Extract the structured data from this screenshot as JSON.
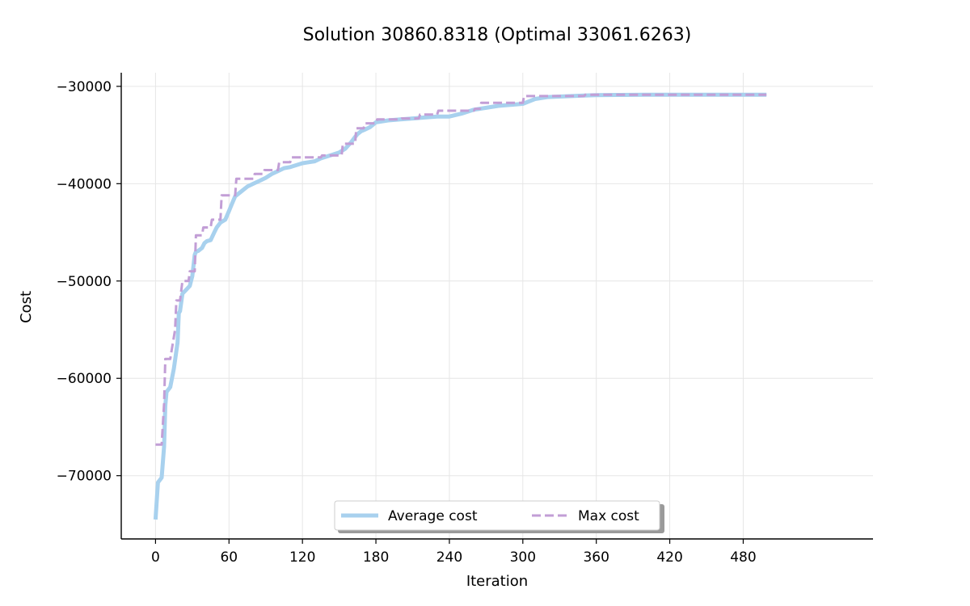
{
  "chart_data": {
    "type": "line",
    "title": "Solution 30860.8318 (Optimal 33061.6263)",
    "xlabel": "Iteration",
    "ylabel": "Cost",
    "xlim": [
      -28,
      586
    ],
    "ylim": [
      -76500,
      -28600
    ],
    "xticks": [
      0,
      60,
      120,
      180,
      240,
      300,
      360,
      420,
      480
    ],
    "yticks": [
      -70000,
      -60000,
      -50000,
      -40000,
      -30000
    ],
    "ytick_labels": [
      "−70000",
      "−60000",
      "−50000",
      "−40000",
      "−30000"
    ],
    "grid": true,
    "legend": {
      "position": "lower center",
      "ncol": 2
    },
    "series": [
      {
        "name": "Average cost",
        "style": "solid",
        "color": "#a8d1ee",
        "x": [
          0,
          2,
          5,
          7,
          8,
          9,
          12,
          15,
          18,
          19,
          20,
          22,
          25,
          28,
          30,
          32,
          33,
          35,
          38,
          40,
          42,
          45,
          48,
          50,
          53,
          57,
          60,
          62,
          65,
          70,
          75,
          80,
          85,
          90,
          95,
          100,
          105,
          110,
          115,
          120,
          125,
          130,
          135,
          140,
          145,
          150,
          155,
          160,
          163,
          165,
          168,
          170,
          175,
          180,
          190,
          200,
          210,
          220,
          230,
          240,
          250,
          260,
          270,
          280,
          290,
          300,
          310,
          320,
          330,
          340,
          350,
          360,
          380,
          400,
          420,
          450,
          499
        ],
        "values": [
          -74500,
          -70700,
          -70200,
          -67000,
          -62800,
          -61400,
          -60900,
          -59000,
          -56300,
          -53300,
          -53100,
          -51300,
          -50900,
          -50500,
          -49500,
          -47300,
          -47000,
          -46900,
          -46600,
          -46100,
          -45900,
          -45800,
          -45000,
          -44500,
          -44000,
          -43700,
          -42800,
          -42200,
          -41300,
          -40800,
          -40300,
          -40000,
          -39700,
          -39400,
          -39000,
          -38700,
          -38400,
          -38300,
          -38100,
          -37900,
          -37800,
          -37700,
          -37400,
          -37200,
          -37000,
          -36800,
          -36400,
          -35700,
          -35200,
          -34900,
          -34600,
          -34500,
          -34200,
          -33700,
          -33500,
          -33400,
          -33300,
          -33200,
          -33100,
          -33100,
          -32800,
          -32400,
          -32200,
          -32000,
          -31900,
          -31800,
          -31300,
          -31100,
          -31050,
          -31000,
          -30950,
          -30900,
          -30880,
          -30870,
          -30865,
          -30862,
          -30861
        ]
      },
      {
        "name": "Max cost",
        "style": "dashed",
        "color": "#c29ed6",
        "x": [
          0,
          5,
          7,
          8,
          12,
          16,
          17,
          20,
          22,
          27,
          28,
          32,
          33,
          38,
          39,
          45,
          46,
          53,
          54,
          65,
          66,
          80,
          81,
          88,
          89,
          100,
          101,
          110,
          111,
          135,
          136,
          152,
          153,
          163,
          164,
          170,
          171,
          180,
          181,
          200,
          201,
          215,
          216,
          230,
          231,
          260,
          261,
          265,
          266,
          300,
          301,
          350,
          351,
          499
        ],
        "values": [
          -66800,
          -66800,
          -62600,
          -58000,
          -58000,
          -55000,
          -52000,
          -52000,
          -50000,
          -50000,
          -49000,
          -49000,
          -45300,
          -45300,
          -44500,
          -44500,
          -43700,
          -43700,
          -41200,
          -41200,
          -39500,
          -39500,
          -39000,
          -39000,
          -38600,
          -38600,
          -37800,
          -37800,
          -37300,
          -37300,
          -37100,
          -37100,
          -35900,
          -35900,
          -34300,
          -34300,
          -33800,
          -33800,
          -33400,
          -33400,
          -33300,
          -33300,
          -32900,
          -32900,
          -32500,
          -32500,
          -32300,
          -32300,
          -31700,
          -31700,
          -31000,
          -31000,
          -30860,
          -30860
        ]
      }
    ]
  }
}
